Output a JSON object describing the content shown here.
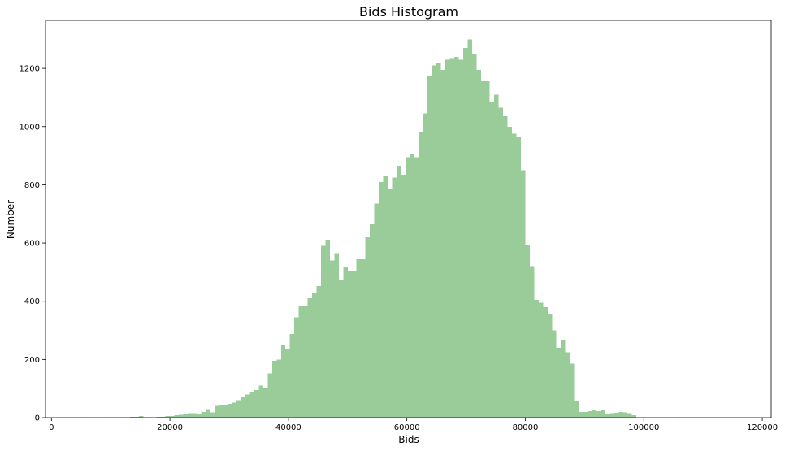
{
  "chart_data": {
    "type": "bar",
    "title": "Bids Histogram",
    "xlabel": "Bids",
    "ylabel": "Number",
    "xlim": [
      -1000,
      121500
    ],
    "ylim": [
      0,
      1365
    ],
    "x_ticks": [
      0,
      20000,
      40000,
      60000,
      80000,
      100000,
      120000
    ],
    "y_ticks": [
      0,
      200,
      400,
      600,
      800,
      1000,
      1200
    ],
    "bar_color": "#99cc99",
    "grid": false,
    "bin_width": 750,
    "bin_start": 3500,
    "values": [
      0,
      0,
      2,
      0,
      0,
      0,
      0,
      0,
      1,
      1,
      0,
      1,
      1,
      3,
      3,
      5,
      1,
      1,
      0,
      3,
      3,
      6,
      6,
      8,
      10,
      12,
      15,
      16,
      14,
      20,
      30,
      18,
      40,
      43,
      45,
      48,
      52,
      60,
      72,
      80,
      87,
      95,
      110,
      100,
      152,
      195,
      200,
      250,
      235,
      287,
      345,
      385,
      385,
      410,
      430,
      452,
      590,
      612,
      540,
      565,
      475,
      518,
      505,
      502,
      545,
      545,
      620,
      665,
      735,
      810,
      830,
      785,
      825,
      865,
      835,
      895,
      905,
      895,
      980,
      1045,
      1175,
      1210,
      1220,
      1195,
      1230,
      1235,
      1240,
      1230,
      1270,
      1300,
      1250,
      1195,
      1155,
      1155,
      1085,
      1110,
      1065,
      1035,
      1000,
      975,
      965,
      850,
      595,
      520,
      405,
      395,
      380,
      355,
      300,
      240,
      265,
      225,
      185,
      58,
      20,
      20,
      22,
      25,
      22,
      25,
      12,
      15,
      17,
      20,
      18,
      15,
      8,
      0,
      0,
      0,
      0,
      0,
      0,
      0,
      0,
      0,
      2,
      0,
      0,
      0,
      0
    ]
  }
}
